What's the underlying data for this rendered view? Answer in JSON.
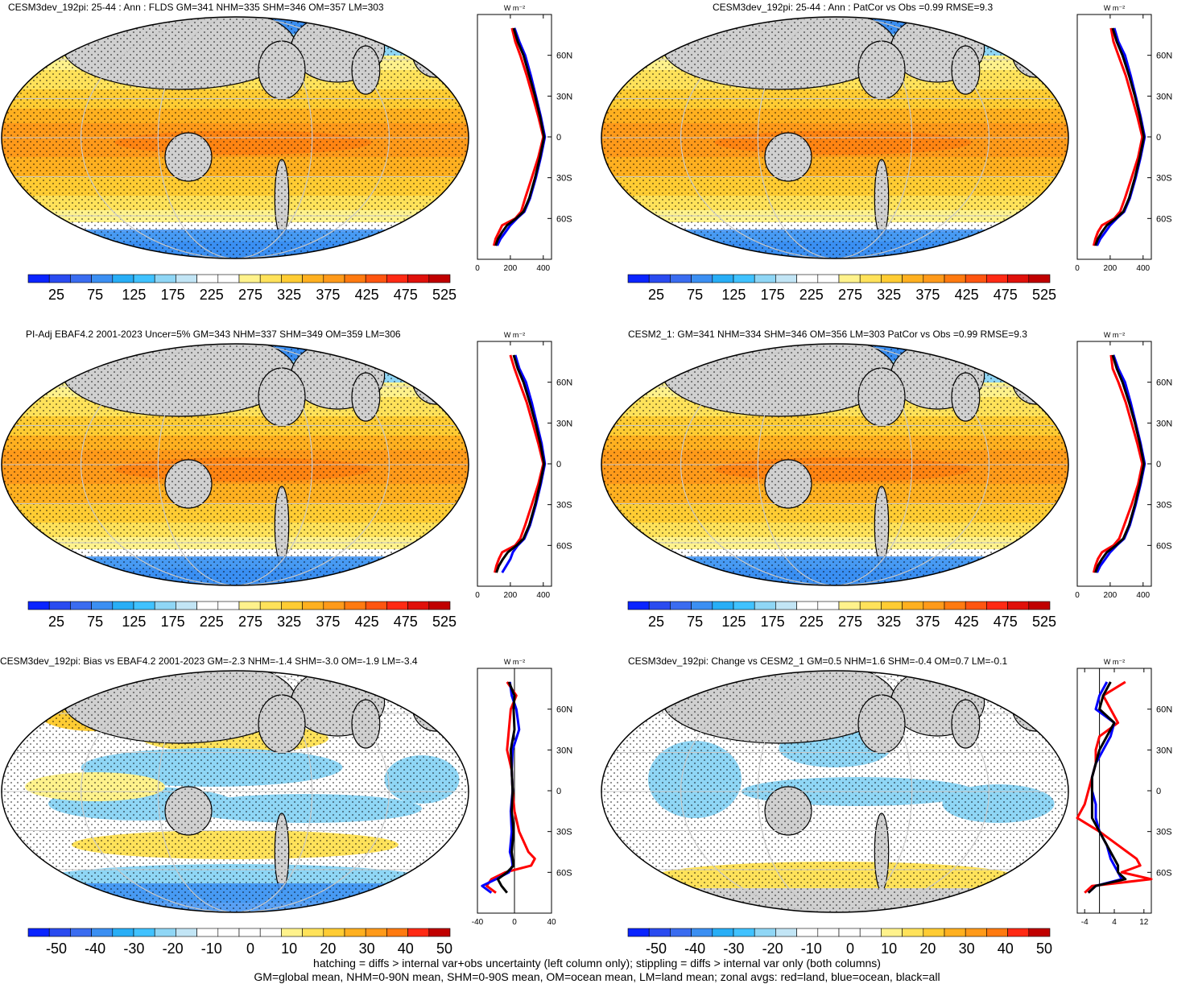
{
  "chart_data": [
    {
      "type": "heatmap",
      "title": "CESM3dev_192pi: 25-44 : Ann : FLDS GM=341 NHM=335 SHM=346 OM=357 LM=303",
      "colorbar_labels": [
        "25",
        "75",
        "125",
        "175",
        "225",
        "275",
        "325",
        "375",
        "425",
        "475",
        "525"
      ],
      "zonal": {
        "xlim": [
          0,
          450
        ],
        "xticks": [
          "0",
          "200",
          "400"
        ],
        "yticks": [
          "60N",
          "30N",
          "0",
          "30S",
          "60S"
        ],
        "unit": "W m⁻²"
      },
      "series": [
        {
          "name": "land",
          "color": "#ff0000",
          "lat": [
            80,
            70,
            60,
            45,
            30,
            15,
            0,
            -15,
            -30,
            -45,
            -55,
            -60,
            -65,
            -70,
            -75,
            -80
          ],
          "values": [
            210,
            230,
            260,
            300,
            335,
            370,
            400,
            370,
            330,
            290,
            265,
            230,
            150,
            130,
            110,
            100
          ]
        },
        {
          "name": "ocean",
          "color": "#0000ff",
          "lat": [
            80,
            70,
            60,
            45,
            30,
            15,
            0,
            -15,
            -30,
            -45,
            -55,
            -60,
            -65,
            -70,
            -75,
            -80
          ],
          "values": [
            225,
            255,
            290,
            325,
            355,
            385,
            410,
            385,
            355,
            320,
            285,
            240,
            200,
            170,
            140,
            120
          ]
        },
        {
          "name": "all",
          "color": "#000000",
          "lat": [
            80,
            70,
            60,
            45,
            30,
            15,
            0,
            -15,
            -30,
            -45,
            -55,
            -60,
            -65,
            -70,
            -75,
            -80
          ],
          "values": [
            220,
            245,
            280,
            315,
            350,
            380,
            405,
            380,
            350,
            315,
            280,
            235,
            180,
            150,
            125,
            110
          ]
        }
      ]
    },
    {
      "type": "heatmap",
      "title": "CESM3dev_192pi: 25-44 : Ann : PatCor vs Obs =0.99 RMSE=9.3",
      "colorbar_labels": [
        "25",
        "75",
        "125",
        "175",
        "225",
        "275",
        "325",
        "375",
        "425",
        "475",
        "525"
      ],
      "zonal": {
        "xlim": [
          0,
          450
        ],
        "xticks": [
          "0",
          "200",
          "400"
        ],
        "yticks": [
          "60N",
          "30N",
          "0",
          "30S",
          "60S"
        ],
        "unit": "W m⁻²"
      },
      "series": [
        {
          "name": "land",
          "color": "#ff0000",
          "lat": [
            80,
            70,
            60,
            45,
            30,
            15,
            0,
            -15,
            -30,
            -45,
            -55,
            -60,
            -65,
            -70,
            -75,
            -80
          ],
          "values": [
            205,
            220,
            250,
            295,
            330,
            365,
            395,
            370,
            330,
            290,
            260,
            225,
            150,
            125,
            110,
            100
          ]
        },
        {
          "name": "ocean",
          "color": "#0000ff",
          "lat": [
            80,
            70,
            60,
            45,
            30,
            15,
            0,
            -15,
            -30,
            -45,
            -55,
            -60,
            -65,
            -70,
            -75,
            -80
          ],
          "values": [
            225,
            250,
            290,
            325,
            355,
            385,
            410,
            385,
            355,
            320,
            285,
            240,
            200,
            170,
            140,
            120
          ]
        },
        {
          "name": "all",
          "color": "#000000",
          "lat": [
            80,
            70,
            60,
            45,
            30,
            15,
            0,
            -15,
            -30,
            -45,
            -55,
            -60,
            -65,
            -70,
            -75,
            -80
          ],
          "values": [
            215,
            240,
            275,
            315,
            350,
            380,
            405,
            380,
            350,
            315,
            280,
            235,
            180,
            150,
            125,
            110
          ]
        }
      ]
    },
    {
      "type": "heatmap",
      "title": "PI-Adj EBAF4.2 2001-2023 Uncer=5% GM=343 NHM=337 SHM=349 OM=359 LM=306",
      "colorbar_labels": [
        "25",
        "75",
        "125",
        "175",
        "225",
        "275",
        "325",
        "375",
        "425",
        "475",
        "525"
      ],
      "zonal": {
        "xlim": [
          0,
          450
        ],
        "xticks": [
          "0",
          "200",
          "400"
        ],
        "yticks": [
          "60N",
          "30N",
          "0",
          "30S",
          "60S"
        ],
        "unit": "W m⁻²"
      },
      "series": [
        {
          "name": "land",
          "color": "#ff0000",
          "lat": [
            80,
            70,
            60,
            45,
            30,
            15,
            0,
            -15,
            -30,
            -45,
            -55,
            -60,
            -65,
            -70,
            -75,
            -80
          ],
          "values": [
            200,
            225,
            255,
            300,
            335,
            370,
            400,
            370,
            330,
            290,
            260,
            230,
            150,
            130,
            115,
            105
          ]
        },
        {
          "name": "ocean",
          "color": "#0000ff",
          "lat": [
            80,
            70,
            60,
            45,
            30,
            15,
            0,
            -15,
            -30,
            -45,
            -55,
            -60,
            -65,
            -70,
            -75,
            -80
          ],
          "values": [
            230,
            255,
            295,
            330,
            360,
            390,
            410,
            385,
            355,
            320,
            285,
            245,
            215,
            200,
            175,
            150
          ]
        },
        {
          "name": "all",
          "color": "#000000",
          "lat": [
            80,
            70,
            60,
            45,
            30,
            15,
            0,
            -15,
            -30,
            -45,
            -55,
            -60,
            -65,
            -70,
            -75,
            -80
          ],
          "values": [
            220,
            245,
            280,
            318,
            352,
            382,
            405,
            380,
            350,
            315,
            280,
            238,
            185,
            155,
            130,
            115
          ]
        }
      ]
    },
    {
      "type": "heatmap",
      "title": "CESM2_1: GM=341 NHM=334 SHM=346 OM=356 LM=303 PatCor vs Obs =0.99 RMSE=9.3",
      "colorbar_labels": [
        "25",
        "75",
        "125",
        "175",
        "225",
        "275",
        "325",
        "375",
        "425",
        "475",
        "525"
      ],
      "zonal": {
        "xlim": [
          0,
          450
        ],
        "xticks": [
          "0",
          "200",
          "400"
        ],
        "yticks": [
          "60N",
          "30N",
          "0",
          "30S",
          "60S"
        ],
        "unit": "W m⁻²"
      },
      "series": [
        {
          "name": "land",
          "color": "#ff0000",
          "lat": [
            80,
            70,
            60,
            45,
            30,
            15,
            0,
            -15,
            -30,
            -45,
            -55,
            -60,
            -65,
            -70,
            -75,
            -80
          ],
          "values": [
            205,
            215,
            250,
            295,
            330,
            365,
            395,
            370,
            330,
            285,
            255,
            220,
            150,
            125,
            110,
            100
          ]
        },
        {
          "name": "ocean",
          "color": "#0000ff",
          "lat": [
            80,
            70,
            60,
            45,
            30,
            15,
            0,
            -15,
            -30,
            -45,
            -55,
            -60,
            -65,
            -70,
            -75,
            -80
          ],
          "values": [
            220,
            250,
            290,
            325,
            355,
            385,
            410,
            385,
            355,
            320,
            285,
            240,
            200,
            170,
            140,
            120
          ]
        },
        {
          "name": "all",
          "color": "#000000",
          "lat": [
            80,
            70,
            60,
            45,
            30,
            15,
            0,
            -15,
            -30,
            -45,
            -55,
            -60,
            -65,
            -70,
            -75,
            -80
          ],
          "values": [
            215,
            240,
            275,
            315,
            350,
            380,
            405,
            380,
            350,
            315,
            280,
            235,
            180,
            150,
            125,
            110
          ]
        }
      ]
    },
    {
      "type": "heatmap",
      "title": "CESM3dev_192pi: Bias vs EBAF4.2 2001-2023 GM=-2.3 NHM=-1.4 SHM=-3.0 OM=-1.9 LM=-3.4",
      "colorbar_labels": [
        "-50",
        "-40",
        "-30",
        "-20",
        "-10",
        "0",
        "10",
        "20",
        "30",
        "40",
        "50"
      ],
      "zonal": {
        "xlim": [
          -40,
          40
        ],
        "xticks": [
          "-40",
          "0",
          "40"
        ],
        "yticks": [
          "60N",
          "30N",
          "0",
          "30S",
          "60S"
        ],
        "unit": "W m⁻²"
      },
      "series": [
        {
          "name": "land",
          "color": "#ff0000",
          "lat": [
            80,
            70,
            60,
            45,
            30,
            15,
            0,
            -15,
            -30,
            -45,
            -50,
            -55,
            -60,
            -65,
            -70,
            -75
          ],
          "values": [
            -8,
            2,
            -4,
            -6,
            -8,
            -3,
            -2,
            0,
            5,
            15,
            22,
            18,
            -10,
            -25,
            -30,
            -20
          ]
        },
        {
          "name": "ocean",
          "color": "#0000ff",
          "lat": [
            80,
            70,
            60,
            45,
            30,
            15,
            0,
            -15,
            -30,
            -45,
            -50,
            -55,
            -60,
            -65,
            -70,
            -75
          ],
          "values": [
            -5,
            -3,
            2,
            5,
            -2,
            -3,
            -2,
            -4,
            -3,
            -5,
            -3,
            -2,
            -6,
            -20,
            -35,
            -25
          ]
        },
        {
          "name": "all",
          "color": "#000000",
          "lat": [
            80,
            70,
            60,
            45,
            30,
            15,
            0,
            -15,
            -30,
            -45,
            -50,
            -55,
            -60,
            -65,
            -70,
            -75
          ],
          "values": [
            -6,
            0,
            -1,
            0,
            -4,
            -3,
            -2,
            -3,
            -1,
            -3,
            -2,
            -1,
            -8,
            -18,
            -14,
            -8
          ]
        }
      ]
    },
    {
      "type": "heatmap",
      "title": "CESM3dev_192pi: Change vs CESM2_1 GM=0.5 NHM=1.6 SHM=-0.4 OM=0.7 LM=-0.1",
      "colorbar_labels": [
        "-50",
        "-40",
        "-30",
        "-20",
        "-10",
        "0",
        "10",
        "20",
        "30",
        "40",
        "50"
      ],
      "zonal": {
        "xlim": [
          -6,
          14
        ],
        "xticks": [
          "-4",
          "4",
          "12"
        ],
        "yticks": [
          "60N",
          "30N",
          "0",
          "30S",
          "60S"
        ],
        "unit": "W m⁻²"
      },
      "series": [
        {
          "name": "land",
          "color": "#ff0000",
          "lat": [
            80,
            70,
            60,
            50,
            40,
            30,
            20,
            10,
            0,
            -10,
            -20,
            -30,
            -40,
            -50,
            -55,
            -60,
            -65,
            -70,
            -75
          ],
          "values": [
            7,
            1,
            3,
            5,
            0,
            -1,
            -1,
            -2,
            -3,
            -4,
            -6,
            0,
            5,
            10,
            11,
            6,
            14,
            -2,
            -4
          ]
        },
        {
          "name": "ocean",
          "color": "#0000ff",
          "lat": [
            80,
            70,
            60,
            50,
            40,
            30,
            20,
            10,
            0,
            -10,
            -20,
            -30,
            -40,
            -50,
            -55,
            -60,
            -65,
            -70,
            -75
          ],
          "values": [
            2,
            0,
            -1,
            4,
            3,
            1,
            -1,
            -2,
            -2,
            -1,
            -1,
            0,
            2,
            3,
            4,
            5,
            6,
            -1,
            -3
          ]
        },
        {
          "name": "all",
          "color": "#000000",
          "lat": [
            80,
            70,
            60,
            50,
            40,
            30,
            20,
            10,
            0,
            -10,
            -20,
            -30,
            -40,
            -50,
            -55,
            -60,
            -65,
            -70,
            -75
          ],
          "values": [
            3,
            1,
            0,
            4,
            2,
            0,
            -1,
            -2,
            -2,
            -2,
            -2,
            0,
            2,
            4,
            5,
            5,
            7,
            -1,
            -3
          ]
        }
      ]
    }
  ],
  "footer": {
    "line1": "hatching = diffs > internal var+obs uncertainty (left column only); stippling = diffs > internal var only (both columns)",
    "line2": "GM=global mean, NHM=0-90N mean, SHM=0-90S mean, OM=ocean mean, LM=land mean; zonal avgs: red=land, blue=ocean, black=all"
  }
}
